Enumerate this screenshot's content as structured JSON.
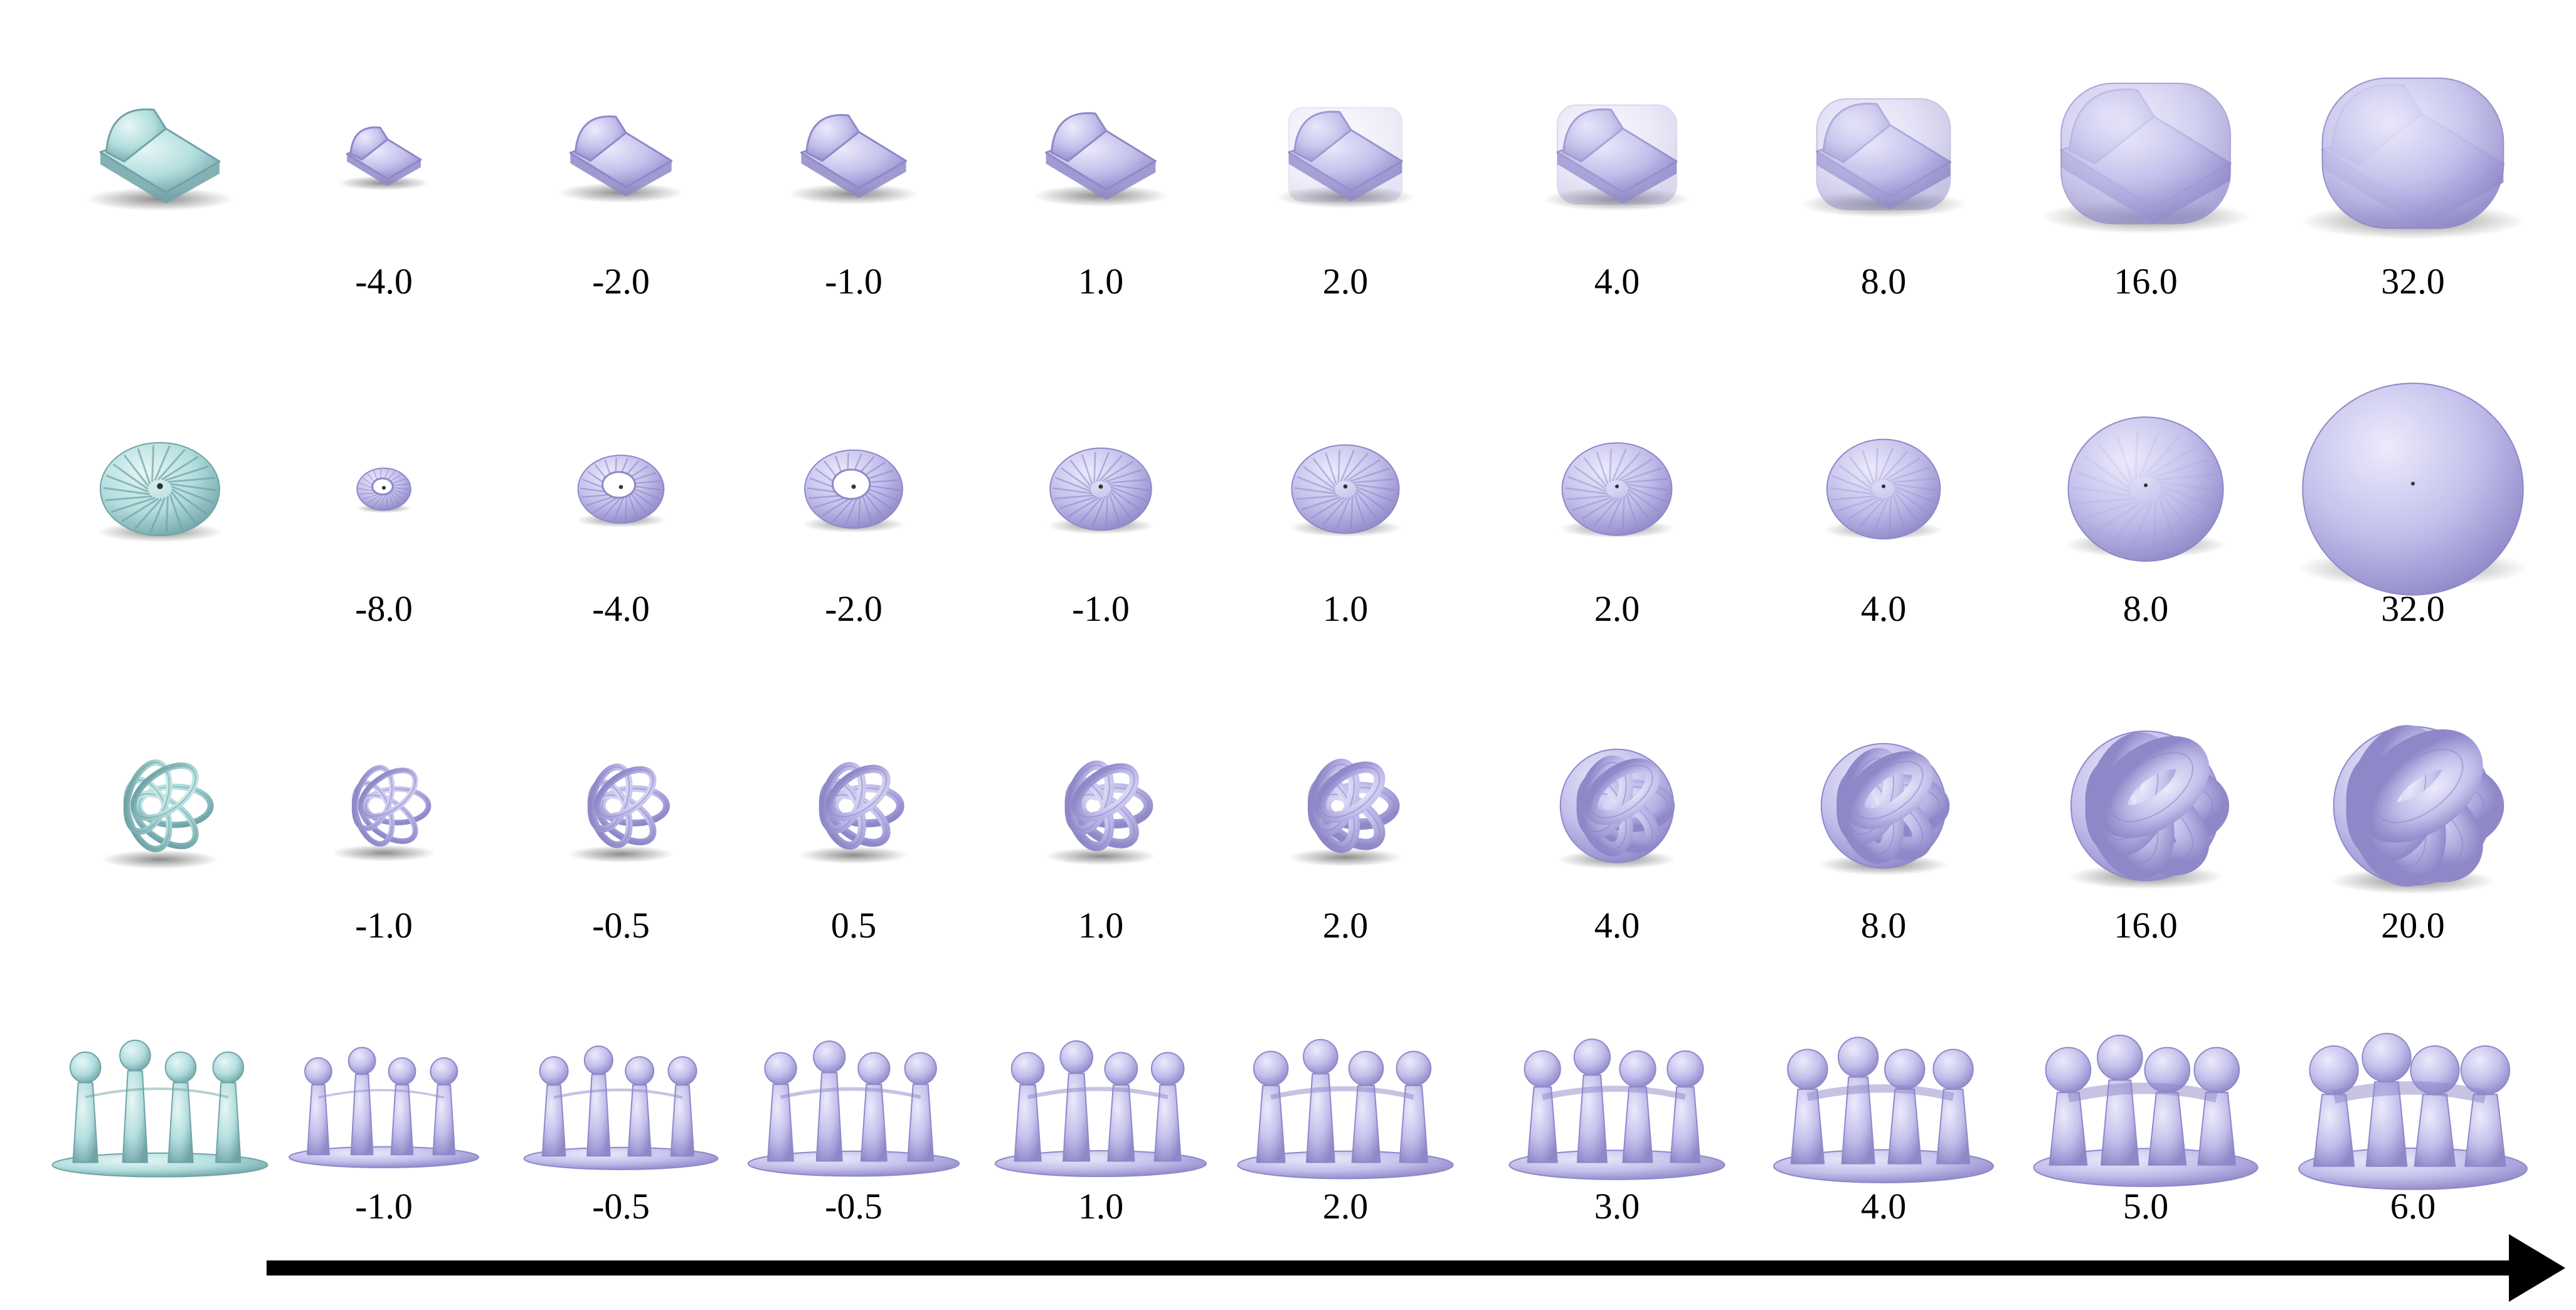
{
  "figure": {
    "colors": {
      "original": "#b3dede",
      "original_dark": "#6fa3a6",
      "result": "#c4c0ec",
      "result_dark": "#8e88c8",
      "arrow": "#000000"
    },
    "rows": [
      {
        "shape": "chair-icon",
        "labels": [
          "-4.0",
          "-2.0",
          "-1.0",
          "1.0",
          "2.0",
          "4.0",
          "8.0",
          "16.0",
          "32.0"
        ]
      },
      {
        "shape": "gear-dome-icon",
        "labels": [
          "-8.0",
          "-4.0",
          "-2.0",
          "-1.0",
          "1.0",
          "2.0",
          "4.0",
          "8.0",
          "32.0"
        ]
      },
      {
        "shape": "knot-ball-icon",
        "labels": [
          "-1.0",
          "-0.5",
          "0.5",
          "1.0",
          "2.0",
          "4.0",
          "8.0",
          "16.0",
          "20.0"
        ]
      },
      {
        "shape": "children-statue-icon",
        "labels": [
          "-1.0",
          "-0.5",
          "-0.5",
          "1.0",
          "2.0",
          "3.0",
          "4.0",
          "5.0",
          "6.0"
        ]
      }
    ]
  }
}
